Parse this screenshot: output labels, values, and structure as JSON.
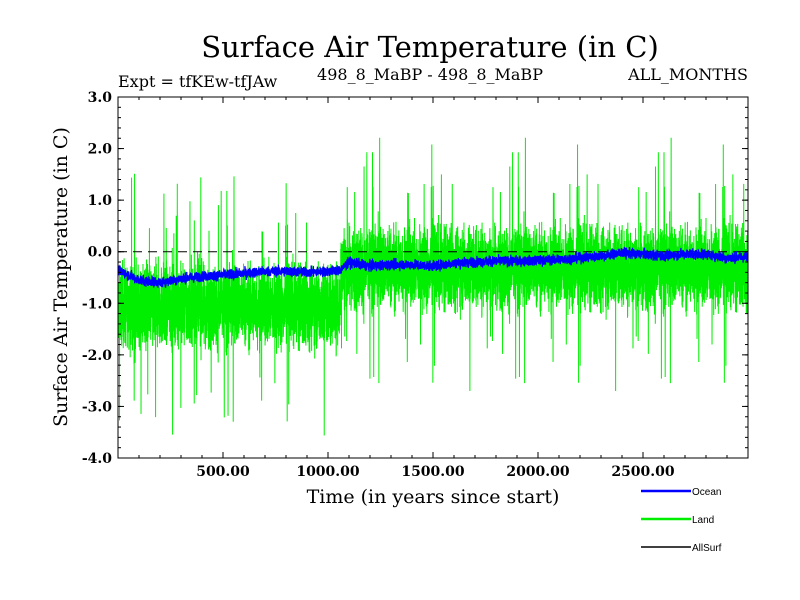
{
  "chart_data": {
    "type": "line",
    "title": "Surface Air Temperature (in C)",
    "subtitle_left": "Expt = tfKEw-tfJAw",
    "subtitle_center": "498_8_MaBP - 498_8_MaBP",
    "subtitle_right": "ALL_MONTHS",
    "xlabel": "Time (in years since start)",
    "ylabel": "Surface Air Temperature (in C)",
    "xlim": [
      0,
      3000
    ],
    "ylim": [
      -4.0,
      3.0
    ],
    "x_ticks": [
      500,
      1000,
      1500,
      2000,
      2500
    ],
    "x_tick_labels": [
      "500.00",
      "1000.00",
      "1500.00",
      "2000.00",
      "2500.00"
    ],
    "y_ticks": [
      -4,
      -3,
      -2,
      -1,
      0,
      1,
      2,
      3
    ],
    "y_tick_labels": [
      "-4.0",
      "-3.0",
      "-2.0",
      "-1.0",
      "0.0",
      "1.0",
      "2.0",
      "3.0"
    ],
    "zero_line": 0.0,
    "legend_placement": "bottom-right, outside plot",
    "series": [
      {
        "name": "Land",
        "color": "#00ee00",
        "segments": [
          {
            "x_range": [
              0,
              1060
            ],
            "mean": -1.05,
            "min": -3.7,
            "max": 1.9
          },
          {
            "x_range": [
              1060,
              3000
            ],
            "mean": -0.3,
            "min": -2.7,
            "max": 2.7
          }
        ]
      },
      {
        "name": "Ocean",
        "color": "#0000ff",
        "points": [
          [
            0,
            -0.35
          ],
          [
            100,
            -0.55
          ],
          [
            200,
            -0.6
          ],
          [
            300,
            -0.52
          ],
          [
            400,
            -0.48
          ],
          [
            500,
            -0.45
          ],
          [
            600,
            -0.42
          ],
          [
            700,
            -0.38
          ],
          [
            800,
            -0.38
          ],
          [
            900,
            -0.4
          ],
          [
            1000,
            -0.38
          ],
          [
            1060,
            -0.35
          ],
          [
            1100,
            -0.2
          ],
          [
            1200,
            -0.28
          ],
          [
            1300,
            -0.25
          ],
          [
            1400,
            -0.25
          ],
          [
            1500,
            -0.28
          ],
          [
            1600,
            -0.22
          ],
          [
            1700,
            -0.2
          ],
          [
            1800,
            -0.18
          ],
          [
            1900,
            -0.18
          ],
          [
            2000,
            -0.17
          ],
          [
            2100,
            -0.15
          ],
          [
            2200,
            -0.12
          ],
          [
            2300,
            -0.08
          ],
          [
            2400,
            -0.02
          ],
          [
            2500,
            -0.05
          ],
          [
            2600,
            -0.08
          ],
          [
            2700,
            -0.04
          ],
          [
            2800,
            -0.05
          ],
          [
            2900,
            -0.12
          ],
          [
            3000,
            -0.1
          ]
        ]
      },
      {
        "name": "AllSurf",
        "color": "#000000"
      }
    ]
  }
}
